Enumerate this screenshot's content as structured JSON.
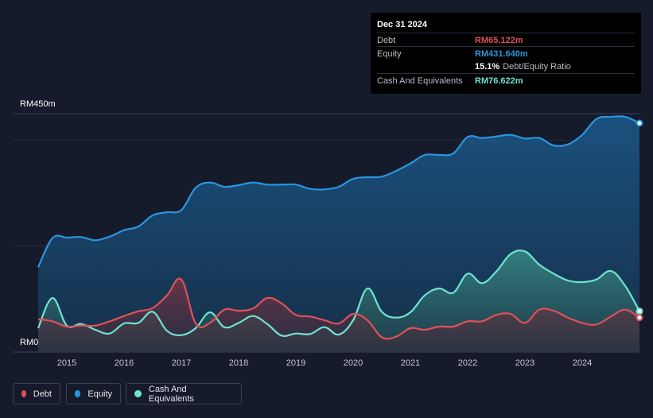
{
  "tooltip": {
    "date": "Dec 31 2024",
    "debt_label": "Debt",
    "debt_value": "RM65.122m",
    "equity_label": "Equity",
    "equity_value": "RM431.640m",
    "ratio_value": "15.1%",
    "ratio_label": "Debt/Equity Ratio",
    "cash_label": "Cash And Equivalents",
    "cash_value": "RM76.622m"
  },
  "colors": {
    "debt": "#e0505a",
    "equity": "#2b95e0",
    "cash": "#6fe3d0",
    "background": "#151b2b"
  },
  "legend": [
    {
      "name": "Debt",
      "color": "#e0505a"
    },
    {
      "name": "Equity",
      "color": "#2b95e0"
    },
    {
      "name": "Cash And Equivalents",
      "color": "#6fe3d0"
    }
  ],
  "chart_data": {
    "type": "area",
    "title": "",
    "xlabel": "",
    "ylabel": "",
    "ylim": [
      0,
      450
    ],
    "ytick_labels": [
      "RM450m",
      "RM0"
    ],
    "xticks": [
      "2015",
      "2016",
      "2017",
      "2018",
      "2019",
      "2020",
      "2021",
      "2022",
      "2023",
      "2024"
    ],
    "xlim": [
      2014.5,
      2025.0
    ],
    "series": [
      {
        "name": "Equity",
        "points": [
          [
            2014.5,
            160
          ],
          [
            2014.75,
            215
          ],
          [
            2015.0,
            216
          ],
          [
            2015.25,
            217
          ],
          [
            2015.5,
            211
          ],
          [
            2015.75,
            218
          ],
          [
            2016.0,
            230
          ],
          [
            2016.25,
            237
          ],
          [
            2016.5,
            258
          ],
          [
            2016.75,
            264
          ],
          [
            2017.0,
            268
          ],
          [
            2017.25,
            310
          ],
          [
            2017.5,
            320
          ],
          [
            2017.75,
            312
          ],
          [
            2018.0,
            315
          ],
          [
            2018.25,
            320
          ],
          [
            2018.5,
            316
          ],
          [
            2018.75,
            316
          ],
          [
            2019.0,
            316
          ],
          [
            2019.25,
            308
          ],
          [
            2019.5,
            307
          ],
          [
            2019.75,
            312
          ],
          [
            2020.0,
            327
          ],
          [
            2020.25,
            330
          ],
          [
            2020.5,
            331
          ],
          [
            2020.75,
            342
          ],
          [
            2021.0,
            356
          ],
          [
            2021.25,
            372
          ],
          [
            2021.5,
            372
          ],
          [
            2021.75,
            375
          ],
          [
            2022.0,
            406
          ],
          [
            2022.25,
            404
          ],
          [
            2022.5,
            407
          ],
          [
            2022.75,
            410
          ],
          [
            2023.0,
            403
          ],
          [
            2023.25,
            404
          ],
          [
            2023.5,
            390
          ],
          [
            2023.75,
            392
          ],
          [
            2024.0,
            410
          ],
          [
            2024.25,
            440
          ],
          [
            2024.5,
            444
          ],
          [
            2024.75,
            444
          ],
          [
            2025.0,
            432
          ]
        ]
      },
      {
        "name": "Cash And Equivalents",
        "points": [
          [
            2014.5,
            45
          ],
          [
            2014.75,
            102
          ],
          [
            2015.0,
            50
          ],
          [
            2015.25,
            53
          ],
          [
            2015.5,
            42
          ],
          [
            2015.75,
            35
          ],
          [
            2016.0,
            54
          ],
          [
            2016.25,
            55
          ],
          [
            2016.5,
            76
          ],
          [
            2016.75,
            40
          ],
          [
            2017.0,
            32
          ],
          [
            2017.25,
            45
          ],
          [
            2017.5,
            75
          ],
          [
            2017.75,
            47
          ],
          [
            2018.0,
            55
          ],
          [
            2018.25,
            68
          ],
          [
            2018.5,
            53
          ],
          [
            2018.75,
            31
          ],
          [
            2019.0,
            35
          ],
          [
            2019.25,
            34
          ],
          [
            2019.5,
            47
          ],
          [
            2019.75,
            33
          ],
          [
            2020.0,
            60
          ],
          [
            2020.25,
            120
          ],
          [
            2020.5,
            76
          ],
          [
            2020.75,
            65
          ],
          [
            2021.0,
            75
          ],
          [
            2021.25,
            107
          ],
          [
            2021.5,
            120
          ],
          [
            2021.75,
            112
          ],
          [
            2022.0,
            148
          ],
          [
            2022.25,
            130
          ],
          [
            2022.5,
            152
          ],
          [
            2022.75,
            185
          ],
          [
            2023.0,
            190
          ],
          [
            2023.25,
            165
          ],
          [
            2023.5,
            148
          ],
          [
            2023.75,
            135
          ],
          [
            2024.0,
            132
          ],
          [
            2024.25,
            137
          ],
          [
            2024.5,
            153
          ],
          [
            2024.75,
            125
          ],
          [
            2025.0,
            77
          ]
        ]
      },
      {
        "name": "Debt",
        "points": [
          [
            2014.5,
            62
          ],
          [
            2014.75,
            58
          ],
          [
            2015.0,
            48
          ],
          [
            2015.25,
            50
          ],
          [
            2015.5,
            50
          ],
          [
            2015.75,
            58
          ],
          [
            2016.0,
            68
          ],
          [
            2016.25,
            77
          ],
          [
            2016.5,
            83
          ],
          [
            2016.75,
            107
          ],
          [
            2017.0,
            137
          ],
          [
            2017.25,
            54
          ],
          [
            2017.5,
            55
          ],
          [
            2017.75,
            80
          ],
          [
            2018.0,
            78
          ],
          [
            2018.25,
            82
          ],
          [
            2018.5,
            102
          ],
          [
            2018.75,
            92
          ],
          [
            2019.0,
            70
          ],
          [
            2019.25,
            67
          ],
          [
            2019.5,
            60
          ],
          [
            2019.75,
            54
          ],
          [
            2020.0,
            72
          ],
          [
            2020.25,
            60
          ],
          [
            2020.5,
            28
          ],
          [
            2020.75,
            29
          ],
          [
            2021.0,
            45
          ],
          [
            2021.25,
            42
          ],
          [
            2021.5,
            48
          ],
          [
            2021.75,
            48
          ],
          [
            2022.0,
            58
          ],
          [
            2022.25,
            58
          ],
          [
            2022.5,
            70
          ],
          [
            2022.75,
            72
          ],
          [
            2023.0,
            55
          ],
          [
            2023.25,
            80
          ],
          [
            2023.5,
            78
          ],
          [
            2023.75,
            65
          ],
          [
            2024.0,
            55
          ],
          [
            2024.25,
            52
          ],
          [
            2024.5,
            67
          ],
          [
            2024.75,
            80
          ],
          [
            2025.0,
            65
          ]
        ]
      }
    ]
  }
}
